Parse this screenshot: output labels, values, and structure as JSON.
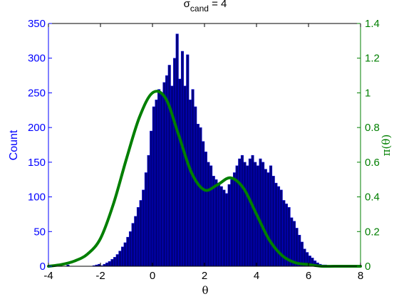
{
  "chart_data": {
    "type": "bar",
    "title": {
      "base": "σ",
      "subscript": "cand",
      "suffix": " = 4"
    },
    "xlabel": "θ",
    "ylabel_left": "Count",
    "ylabel_right": "π(θ)",
    "xlim": [
      -4,
      8
    ],
    "ylim_left": [
      0,
      350
    ],
    "ylim_right": [
      0,
      1.4
    ],
    "x_ticks": [
      "-4",
      "-2",
      "0",
      "2",
      "4",
      "6",
      "8"
    ],
    "y_left_ticks": [
      "0",
      "50",
      "100",
      "150",
      "200",
      "250",
      "300",
      "350"
    ],
    "y_right_ticks": [
      "0",
      "0.2",
      "0.4",
      "0.6",
      "0.8",
      "1",
      "1.2",
      "1.4"
    ],
    "grid": false,
    "histogram": {
      "bin_width": 0.1,
      "bin_start": -3.3,
      "counts": [
        2,
        0,
        0,
        0,
        0,
        0,
        0,
        0,
        0,
        0,
        1,
        2,
        3,
        1,
        3,
        5,
        7,
        10,
        13,
        17,
        22,
        28,
        34,
        42,
        50,
        62,
        72,
        85,
        95,
        110,
        135,
        160,
        195,
        230,
        240,
        255,
        250,
        265,
        275,
        290,
        260,
        300,
        335,
        270,
        310,
        260,
        305,
        240,
        255,
        230,
        205,
        200,
        180,
        165,
        150,
        145,
        130,
        125,
        120,
        115,
        110,
        105,
        118,
        125,
        135,
        145,
        155,
        160,
        150,
        145,
        155,
        160,
        150,
        145,
        155,
        150,
        140,
        135,
        145,
        130,
        120,
        115,
        110,
        95,
        90,
        85,
        70,
        65,
        55,
        45,
        35,
        25,
        20,
        15,
        12,
        8,
        5,
        3,
        2,
        2,
        1,
        1
      ]
    },
    "density_series": {
      "name": "",
      "x": [
        -4,
        -3.5,
        -3,
        -2.5,
        -2,
        -1.5,
        -1,
        -0.5,
        0,
        0.5,
        1,
        1.5,
        2,
        2.5,
        3,
        3.5,
        4,
        4.5,
        5,
        5.5,
        6,
        6.5,
        7,
        7.5,
        8
      ],
      "y": [
        0.0,
        0.01,
        0.03,
        0.07,
        0.16,
        0.36,
        0.62,
        0.86,
        1.0,
        0.97,
        0.76,
        0.54,
        0.44,
        0.47,
        0.51,
        0.45,
        0.3,
        0.15,
        0.06,
        0.02,
        0.01,
        0.0,
        0.0,
        0.0,
        0.0
      ]
    },
    "colors": {
      "bar_fill": "#00007f",
      "bar_stroke": "#0000ff",
      "left_axis": "#0000ff",
      "right_axis": "#007f00",
      "density_line": "#007f00"
    }
  }
}
